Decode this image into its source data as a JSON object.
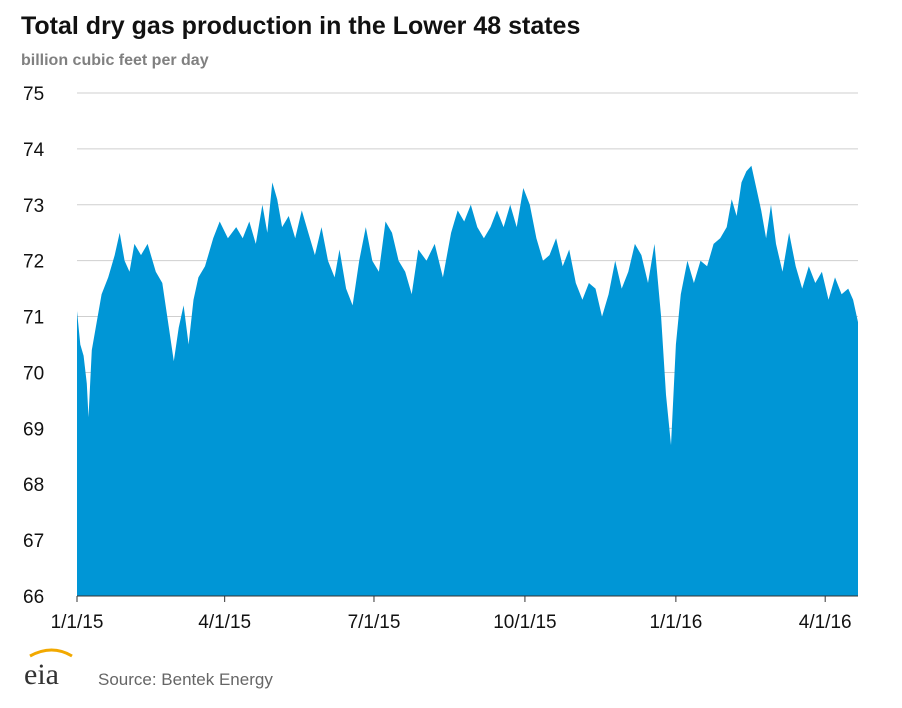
{
  "page": {
    "title": "Total dry gas production in the Lower 48 states",
    "subtitle": "billion cubic feet per day",
    "source": "Source: Bentek Energy",
    "logo_text": "eia",
    "fill_color": "#0096d6",
    "grid_color": "#cfcfcf",
    "logo_color": "#f2a900"
  },
  "chart_data": {
    "type": "area",
    "title": "Total dry gas production in the Lower 48 states",
    "ylabel": "billion cubic feet per day",
    "xlabel": "",
    "ylim": [
      66,
      75
    ],
    "yticks": [
      66,
      67,
      68,
      69,
      70,
      71,
      72,
      73,
      74,
      75
    ],
    "xlim": [
      "2015-01-01",
      "2016-04-21"
    ],
    "xticks": [
      {
        "date": "2015-01-01",
        "label": "1/1/15"
      },
      {
        "date": "2015-04-01",
        "label": "4/1/15"
      },
      {
        "date": "2015-07-01",
        "label": "7/1/15"
      },
      {
        "date": "2015-10-01",
        "label": "10/1/15"
      },
      {
        "date": "2016-01-01",
        "label": "1/1/16"
      },
      {
        "date": "2016-04-01",
        "label": "4/1/16"
      }
    ],
    "grid": "horizontal",
    "series": [
      {
        "points": [
          [
            "2015-01-01",
            71.1
          ],
          [
            "2015-01-03",
            70.5
          ],
          [
            "2015-01-05",
            70.3
          ],
          [
            "2015-01-07",
            69.8
          ],
          [
            "2015-01-08",
            69.2
          ],
          [
            "2015-01-10",
            70.4
          ],
          [
            "2015-01-13",
            70.9
          ],
          [
            "2015-01-16",
            71.4
          ],
          [
            "2015-01-20",
            71.7
          ],
          [
            "2015-01-24",
            72.1
          ],
          [
            "2015-01-27",
            72.5
          ],
          [
            "2015-01-30",
            72.0
          ],
          [
            "2015-02-02",
            71.8
          ],
          [
            "2015-02-05",
            72.3
          ],
          [
            "2015-02-09",
            72.1
          ],
          [
            "2015-02-13",
            72.3
          ],
          [
            "2015-02-18",
            71.8
          ],
          [
            "2015-02-22",
            71.6
          ],
          [
            "2015-02-26",
            70.8
          ],
          [
            "2015-03-01",
            70.2
          ],
          [
            "2015-03-04",
            70.8
          ],
          [
            "2015-03-07",
            71.2
          ],
          [
            "2015-03-10",
            70.5
          ],
          [
            "2015-03-13",
            71.3
          ],
          [
            "2015-03-16",
            71.7
          ],
          [
            "2015-03-20",
            71.9
          ],
          [
            "2015-03-25",
            72.4
          ],
          [
            "2015-03-29",
            72.7
          ],
          [
            "2015-04-03",
            72.4
          ],
          [
            "2015-04-08",
            72.6
          ],
          [
            "2015-04-12",
            72.4
          ],
          [
            "2015-04-16",
            72.7
          ],
          [
            "2015-04-20",
            72.3
          ],
          [
            "2015-04-24",
            73.0
          ],
          [
            "2015-04-27",
            72.5
          ],
          [
            "2015-04-30",
            73.4
          ],
          [
            "2015-05-03",
            73.1
          ],
          [
            "2015-05-06",
            72.6
          ],
          [
            "2015-05-10",
            72.8
          ],
          [
            "2015-05-14",
            72.4
          ],
          [
            "2015-05-18",
            72.9
          ],
          [
            "2015-05-22",
            72.5
          ],
          [
            "2015-05-26",
            72.1
          ],
          [
            "2015-05-30",
            72.6
          ],
          [
            "2015-06-03",
            72.0
          ],
          [
            "2015-06-07",
            71.7
          ],
          [
            "2015-06-10",
            72.2
          ],
          [
            "2015-06-14",
            71.5
          ],
          [
            "2015-06-18",
            71.2
          ],
          [
            "2015-06-22",
            72.0
          ],
          [
            "2015-06-26",
            72.6
          ],
          [
            "2015-06-30",
            72.0
          ],
          [
            "2015-07-04",
            71.8
          ],
          [
            "2015-07-08",
            72.7
          ],
          [
            "2015-07-12",
            72.5
          ],
          [
            "2015-07-16",
            72.0
          ],
          [
            "2015-07-20",
            71.8
          ],
          [
            "2015-07-24",
            71.4
          ],
          [
            "2015-07-28",
            72.2
          ],
          [
            "2015-08-02",
            72.0
          ],
          [
            "2015-08-07",
            72.3
          ],
          [
            "2015-08-12",
            71.7
          ],
          [
            "2015-08-17",
            72.5
          ],
          [
            "2015-08-21",
            72.9
          ],
          [
            "2015-08-25",
            72.7
          ],
          [
            "2015-08-29",
            73.0
          ],
          [
            "2015-09-02",
            72.6
          ],
          [
            "2015-09-06",
            72.4
          ],
          [
            "2015-09-10",
            72.6
          ],
          [
            "2015-09-14",
            72.9
          ],
          [
            "2015-09-18",
            72.6
          ],
          [
            "2015-09-22",
            73.0
          ],
          [
            "2015-09-26",
            72.6
          ],
          [
            "2015-09-30",
            73.3
          ],
          [
            "2015-10-04",
            73.0
          ],
          [
            "2015-10-08",
            72.4
          ],
          [
            "2015-10-12",
            72.0
          ],
          [
            "2015-10-16",
            72.1
          ],
          [
            "2015-10-20",
            72.4
          ],
          [
            "2015-10-24",
            71.9
          ],
          [
            "2015-10-28",
            72.2
          ],
          [
            "2015-11-01",
            71.6
          ],
          [
            "2015-11-05",
            71.3
          ],
          [
            "2015-11-09",
            71.6
          ],
          [
            "2015-11-13",
            71.5
          ],
          [
            "2015-11-17",
            71.0
          ],
          [
            "2015-11-21",
            71.4
          ],
          [
            "2015-11-25",
            72.0
          ],
          [
            "2015-11-29",
            71.5
          ],
          [
            "2015-12-03",
            71.8
          ],
          [
            "2015-12-07",
            72.3
          ],
          [
            "2015-12-11",
            72.1
          ],
          [
            "2015-12-15",
            71.6
          ],
          [
            "2015-12-19",
            72.3
          ],
          [
            "2015-12-23",
            71.0
          ],
          [
            "2015-12-26",
            69.6
          ],
          [
            "2015-12-29",
            68.7
          ],
          [
            "2016-01-01",
            70.5
          ],
          [
            "2016-01-04",
            71.4
          ],
          [
            "2016-01-08",
            72.0
          ],
          [
            "2016-01-12",
            71.6
          ],
          [
            "2016-01-16",
            72.0
          ],
          [
            "2016-01-20",
            71.9
          ],
          [
            "2016-01-24",
            72.3
          ],
          [
            "2016-01-28",
            72.4
          ],
          [
            "2016-02-01",
            72.6
          ],
          [
            "2016-02-04",
            73.1
          ],
          [
            "2016-02-07",
            72.8
          ],
          [
            "2016-02-10",
            73.4
          ],
          [
            "2016-02-13",
            73.6
          ],
          [
            "2016-02-16",
            73.7
          ],
          [
            "2016-02-19",
            73.3
          ],
          [
            "2016-02-22",
            72.9
          ],
          [
            "2016-02-25",
            72.4
          ],
          [
            "2016-02-28",
            73.0
          ],
          [
            "2016-03-02",
            72.3
          ],
          [
            "2016-03-06",
            71.8
          ],
          [
            "2016-03-10",
            72.5
          ],
          [
            "2016-03-14",
            71.9
          ],
          [
            "2016-03-18",
            71.5
          ],
          [
            "2016-03-22",
            71.9
          ],
          [
            "2016-03-26",
            71.6
          ],
          [
            "2016-03-30",
            71.8
          ],
          [
            "2016-04-03",
            71.3
          ],
          [
            "2016-04-07",
            71.7
          ],
          [
            "2016-04-11",
            71.4
          ],
          [
            "2016-04-15",
            71.5
          ],
          [
            "2016-04-18",
            71.3
          ],
          [
            "2016-04-21",
            70.9
          ]
        ]
      }
    ]
  }
}
